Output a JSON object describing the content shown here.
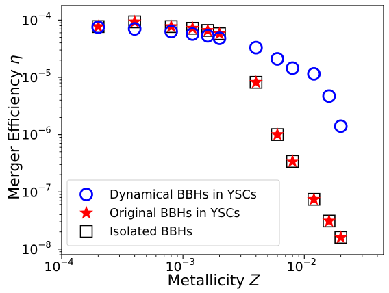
{
  "chart_data": {
    "type": "scatter",
    "xlabel": "Metallicity",
    "xlabel_symbol": "Z",
    "ylabel": "Merger Efficiency",
    "ylabel_symbol": "η",
    "xscale": "log",
    "yscale": "log",
    "xlim": [
      0.0001,
      0.045
    ],
    "ylim": [
      8e-09,
      0.00018
    ],
    "x_ticks": [
      {
        "value": 0.0001,
        "base": "10",
        "exp": "−4"
      },
      {
        "value": 0.001,
        "base": "10",
        "exp": "−3"
      },
      {
        "value": 0.01,
        "base": "10",
        "exp": "−2"
      }
    ],
    "y_ticks": [
      {
        "value": 1e-08,
        "base": "10",
        "exp": "−8"
      },
      {
        "value": 1e-07,
        "base": "10",
        "exp": "−7"
      },
      {
        "value": 1e-06,
        "base": "10",
        "exp": "−6"
      },
      {
        "value": 1e-05,
        "base": "10",
        "exp": "−5"
      },
      {
        "value": 0.0001,
        "base": "10",
        "exp": "−4"
      }
    ],
    "legend_position": "lower-left",
    "grid": false,
    "series": [
      {
        "name": "Dynamical BBHs in YSCs",
        "marker": "circle",
        "color": "#0000ff",
        "points": [
          [
            0.0002,
            7.5e-05
          ],
          [
            0.0004,
            7e-05
          ],
          [
            0.0008,
            6.3e-05
          ],
          [
            0.0012,
            5.7e-05
          ],
          [
            0.0016,
            5.3e-05
          ],
          [
            0.002,
            4.8e-05
          ],
          [
            0.004,
            3.3e-05
          ],
          [
            0.006,
            2.1e-05
          ],
          [
            0.008,
            1.45e-05
          ],
          [
            0.012,
            1.15e-05
          ],
          [
            0.016,
            4.7e-06
          ],
          [
            0.02,
            1.4e-06
          ]
        ]
      },
      {
        "name": "Original BBHs in YSCs",
        "marker": "star",
        "color": "#ff0000",
        "points": [
          [
            0.0002,
            7.7e-05
          ],
          [
            0.0004,
            9.3e-05
          ],
          [
            0.0008,
            7.7e-05
          ],
          [
            0.0012,
            7.2e-05
          ],
          [
            0.0016,
            6.6e-05
          ],
          [
            0.002,
            5.8e-05
          ],
          [
            0.004,
            8.2e-06
          ],
          [
            0.006,
            1e-06
          ],
          [
            0.008,
            3.4e-07
          ],
          [
            0.012,
            7.4e-08
          ],
          [
            0.016,
            3.1e-08
          ],
          [
            0.02,
            1.6e-08
          ]
        ]
      },
      {
        "name": "Isolated BBHs",
        "marker": "square",
        "color": "#000000",
        "points": [
          [
            0.0002,
            7.7e-05
          ],
          [
            0.0004,
            9.3e-05
          ],
          [
            0.0008,
            7.7e-05
          ],
          [
            0.0012,
            7.2e-05
          ],
          [
            0.0016,
            6.6e-05
          ],
          [
            0.002,
            5.8e-05
          ],
          [
            0.004,
            8.2e-06
          ],
          [
            0.006,
            1e-06
          ],
          [
            0.008,
            3.4e-07
          ],
          [
            0.012,
            7.4e-08
          ],
          [
            0.016,
            3.1e-08
          ],
          [
            0.02,
            1.6e-08
          ]
        ]
      }
    ]
  }
}
